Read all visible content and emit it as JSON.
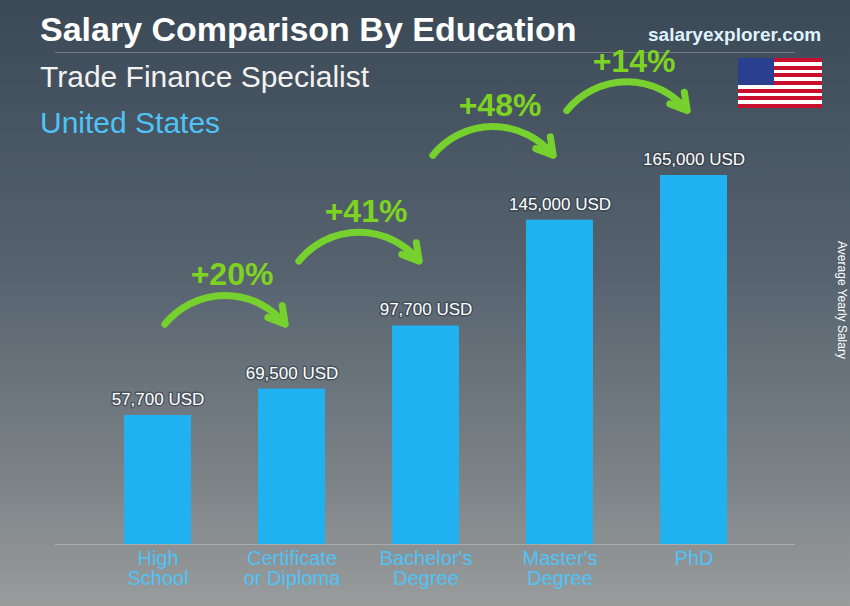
{
  "chart_data": {
    "type": "bar",
    "title": "Salary Comparison By Education",
    "subtitle": [
      "Trade Finance Specialist",
      "United States"
    ],
    "source": "salaryexplorer.com",
    "ylabel": "Average Yearly Salary",
    "categories": [
      "High School",
      "Certificate or Diploma",
      "Bachelor's Degree",
      "Master's Degree",
      "PhD"
    ],
    "values": [
      57700,
      69500,
      97700,
      145000,
      165000
    ],
    "value_labels": [
      "57,700 USD",
      "69,500 USD",
      "97,700 USD",
      "145,000 USD",
      "165,000 USD"
    ],
    "annotations": [
      "+20%",
      "+41%",
      "+48%",
      "+14%"
    ],
    "color": "#1fb1f0",
    "ylim": [
      0,
      220000
    ],
    "yticks": [],
    "tick_labels": "x",
    "data_labels": true,
    "grid": false
  }
}
